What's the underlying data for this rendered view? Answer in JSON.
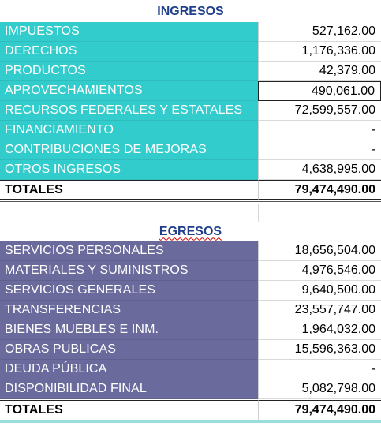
{
  "ingresos": {
    "title": "INGRESOS",
    "rows": [
      {
        "label": "IMPUESTOS",
        "value": "527,162.00"
      },
      {
        "label": "DERECHOS",
        "value": "1,176,336.00"
      },
      {
        "label": "PRODUCTOS",
        "value": "42,379.00"
      },
      {
        "label": "APROVECHAMIENTOS",
        "value": "490,061.00"
      },
      {
        "label": "RECURSOS FEDERALES Y ESTATALES",
        "value": "72,599,557.00"
      },
      {
        "label": "FINANCIAMIENTO",
        "value": "-"
      },
      {
        "label": "CONTRIBUCIONES DE MEJORAS",
        "value": "-"
      },
      {
        "label": "OTROS INGRESOS",
        "value": "4,638,995.00"
      }
    ],
    "total_label": "TOTALES",
    "total_value": "79,474,490.00"
  },
  "egresos": {
    "title": "EGRESOS",
    "rows": [
      {
        "label": "SERVICIOS PERSONALES",
        "value": "18,656,504.00"
      },
      {
        "label": "MATERIALES Y SUMINISTROS",
        "value": "4,976,546.00"
      },
      {
        "label": "SERVICIOS GENERALES",
        "value": "9,640,500.00"
      },
      {
        "label": "TRANSFERENCIAS",
        "value": "23,557,747.00"
      },
      {
        "label": "BIENES MUEBLES E INM.",
        "value": "1,964,032.00"
      },
      {
        "label": "OBRAS PUBLICAS",
        "value": "15,596,363.00"
      },
      {
        "label": "DEUDA PÚBLICA",
        "value": "-"
      },
      {
        "label": "DISPONIBILIDAD FINAL",
        "value": "5,082,798.00"
      }
    ],
    "total_label": "TOTALES",
    "total_value": "79,474,490.00"
  },
  "colors": {
    "ingresos_fill": "#33cccc",
    "egresos_fill": "#6a6a9d",
    "header_text": "#1f3e8c"
  }
}
